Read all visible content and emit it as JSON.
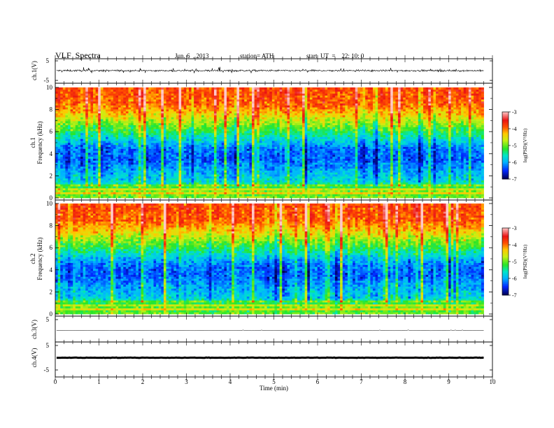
{
  "header": {
    "title": "VLF  Spectra",
    "date": "Jun. 6  , 2013",
    "station": "station= ATH",
    "start": "start  UT  =    22: 10: 0"
  },
  "colors": {
    "waveform": "#000000",
    "axis": "#000000",
    "background": "#ffffff"
  },
  "chart_data": [
    {
      "type": "line",
      "id": "ch1-waveform",
      "ylabel": "ch.1(V)",
      "ylim": [
        -5,
        5
      ],
      "yticks": [
        "5",
        "-5"
      ],
      "xlim": [
        0,
        10
      ],
      "note_shape": "dense noisy signal centered near 0 V, excursions to about ±1.5 V"
    },
    {
      "type": "heatmap",
      "id": "ch1-spectrogram",
      "ylabel": [
        "ch.1",
        "Frequency  (kHz)"
      ],
      "ylim": [
        0,
        10
      ],
      "yticks": [
        "0",
        "2",
        "4",
        "6",
        "8",
        "10"
      ],
      "xlim": [
        0,
        9.8
      ],
      "colorbar": {
        "label": "log(PSD)(V²/Hz)",
        "range": [
          -7,
          -3
        ],
        "ticks": [
          "-3",
          "-4",
          "-5",
          "-6",
          "-7"
        ]
      },
      "profile_khz_to_log_psd": [
        [
          0,
          -5.5
        ],
        [
          0.4,
          -4.8
        ],
        [
          0.8,
          -5.0
        ],
        [
          1.5,
          -5.7
        ],
        [
          2.5,
          -6.0
        ],
        [
          3.5,
          -6.3
        ],
        [
          4.5,
          -6.2
        ],
        [
          5.5,
          -5.6
        ],
        [
          6.5,
          -5.0
        ],
        [
          7.5,
          -4.4
        ],
        [
          8.5,
          -3.9
        ],
        [
          10,
          -3.8
        ]
      ]
    },
    {
      "type": "heatmap",
      "id": "ch2-spectrogram",
      "ylabel": [
        "ch.2",
        "Frequency  (kHz)"
      ],
      "ylim": [
        0,
        10
      ],
      "yticks": [
        "0",
        "2",
        "4",
        "6",
        "8",
        "10"
      ],
      "xlim": [
        0,
        9.8
      ],
      "colorbar": {
        "label": "log(PSD)(V²/Hz)",
        "range": [
          -7,
          -3
        ],
        "ticks": [
          "-3",
          "-4",
          "-5",
          "-6",
          "-7"
        ]
      },
      "profile_khz_to_log_psd": [
        [
          0,
          -5.6
        ],
        [
          0.4,
          -4.9
        ],
        [
          0.8,
          -5.1
        ],
        [
          1.5,
          -5.8
        ],
        [
          2.5,
          -6.0
        ],
        [
          3.5,
          -6.3
        ],
        [
          4.5,
          -6.2
        ],
        [
          5.5,
          -5.6
        ],
        [
          6.5,
          -5.0
        ],
        [
          7.5,
          -4.4
        ],
        [
          8.5,
          -3.9
        ],
        [
          10,
          -3.8
        ]
      ]
    },
    {
      "type": "line",
      "id": "ch3-waveform",
      "ylabel": "ch.3(V)",
      "ylim": [
        -5,
        5
      ],
      "yticks": [
        "5"
      ],
      "xlim": [
        0,
        10
      ],
      "note_shape": "flat trace just below 0 V"
    },
    {
      "type": "line",
      "id": "ch4-waveform",
      "ylabel": "ch.4(V)",
      "ylim": [
        -5,
        5
      ],
      "yticks": [
        "5",
        "-5"
      ],
      "xlim": [
        0,
        10
      ],
      "note_shape": "thick flat trace near 0 V"
    }
  ],
  "x_axis": {
    "label": "Time  (min)",
    "ticks": [
      "0",
      "1",
      "2",
      "3",
      "4",
      "5",
      "6",
      "7",
      "8",
      "9",
      "10"
    ]
  }
}
